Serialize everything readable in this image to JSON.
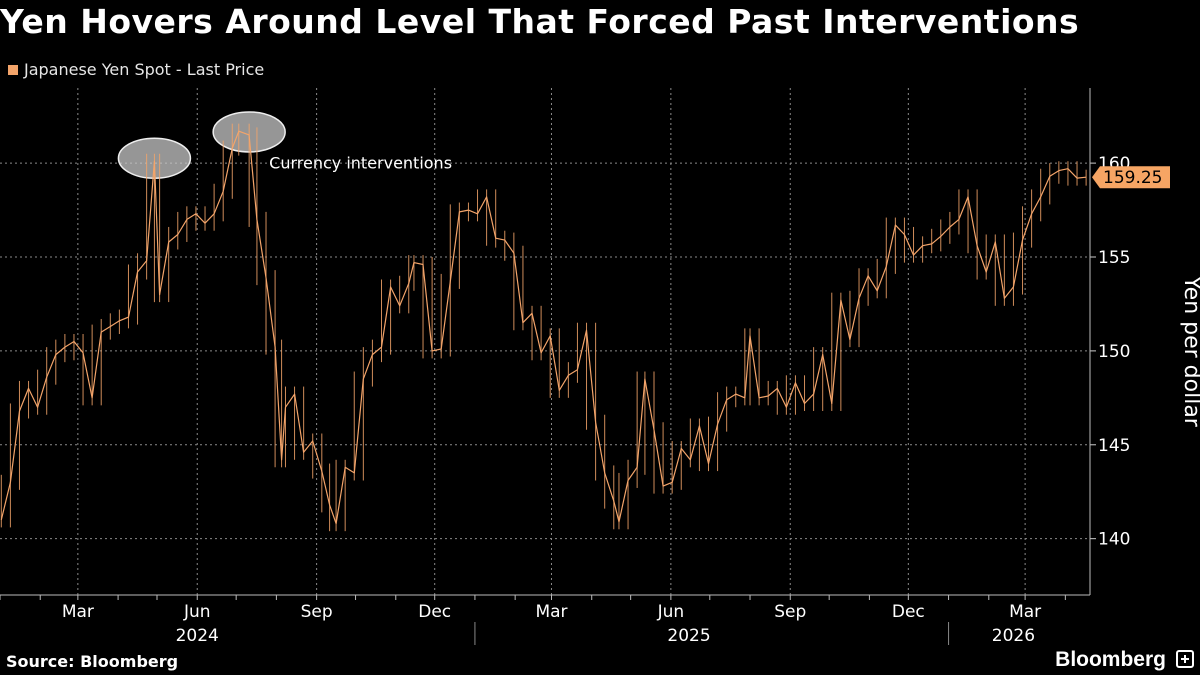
{
  "title": "Yen Hovers Around Level That Forced Past Interventions",
  "legend_label": "Japanese Yen Spot - Last Price",
  "source": "Source: Bloomberg",
  "brand": "Bloomberg",
  "colors": {
    "background": "#000000",
    "series": "#f3a46a",
    "grid": "#8a8a8a",
    "badge": "#f6a564",
    "badge_text": "#000000",
    "annotation_fill": "#c8c8c8"
  },
  "chart_data": {
    "type": "line",
    "title": "Yen Hovers Around Level That Forced Past Interventions",
    "ylabel": "Yen per dollar",
    "xlabel": "",
    "ylim": [
      137,
      164
    ],
    "yticks": [
      140,
      145,
      150,
      155,
      160
    ],
    "y_tick_labels": [
      "140",
      "145",
      "150",
      "155",
      "160"
    ],
    "xlim": [
      "2024-01-01",
      "2026-04-20"
    ],
    "month_ticks": [
      {
        "date": "2024-03-01",
        "label": "Mar"
      },
      {
        "date": "2024-06-01",
        "label": "Jun"
      },
      {
        "date": "2024-09-01",
        "label": "Sep"
      },
      {
        "date": "2024-12-01",
        "label": "Dec"
      },
      {
        "date": "2025-03-01",
        "label": "Mar"
      },
      {
        "date": "2025-06-01",
        "label": "Jun"
      },
      {
        "date": "2025-09-01",
        "label": "Sep"
      },
      {
        "date": "2025-12-01",
        "label": "Dec"
      },
      {
        "date": "2026-03-01",
        "label": "Mar"
      }
    ],
    "year_labels": [
      {
        "date": "2024-06-01",
        "label": "2024"
      },
      {
        "date": "2025-06-15",
        "label": "2025"
      },
      {
        "date": "2026-02-20",
        "label": "2026"
      }
    ],
    "year_dividers": [
      "2025-01-01",
      "2026-01-01"
    ],
    "last_value": 159.25,
    "last_value_label": "159.25",
    "grid": true,
    "legend_position": "top-left",
    "annotation": {
      "text": "Currency interventions",
      "marked_dates": [
        "2024-04-29",
        "2024-07-11"
      ]
    },
    "series": [
      {
        "name": "Japanese Yen Spot - Last Price",
        "x": [
          "2024-01-02",
          "2024-01-09",
          "2024-01-16",
          "2024-01-23",
          "2024-01-30",
          "2024-02-06",
          "2024-02-13",
          "2024-02-20",
          "2024-02-27",
          "2024-03-05",
          "2024-03-12",
          "2024-03-19",
          "2024-03-26",
          "2024-04-02",
          "2024-04-09",
          "2024-04-16",
          "2024-04-23",
          "2024-04-29",
          "2024-05-03",
          "2024-05-10",
          "2024-05-17",
          "2024-05-24",
          "2024-05-31",
          "2024-06-07",
          "2024-06-14",
          "2024-06-21",
          "2024-06-28",
          "2024-07-03",
          "2024-07-11",
          "2024-07-17",
          "2024-07-24",
          "2024-07-31",
          "2024-08-05",
          "2024-08-08",
          "2024-08-15",
          "2024-08-22",
          "2024-08-29",
          "2024-09-05",
          "2024-09-11",
          "2024-09-16",
          "2024-09-23",
          "2024-09-30",
          "2024-10-07",
          "2024-10-14",
          "2024-10-21",
          "2024-10-28",
          "2024-11-04",
          "2024-11-11",
          "2024-11-15",
          "2024-11-22",
          "2024-11-29",
          "2024-12-06",
          "2024-12-13",
          "2024-12-20",
          "2024-12-27",
          "2025-01-03",
          "2025-01-10",
          "2025-01-17",
          "2025-01-24",
          "2025-01-31",
          "2025-02-07",
          "2025-02-14",
          "2025-02-21",
          "2025-02-28",
          "2025-03-07",
          "2025-03-14",
          "2025-03-21",
          "2025-03-28",
          "2025-04-04",
          "2025-04-11",
          "2025-04-18",
          "2025-04-22",
          "2025-04-29",
          "2025-05-06",
          "2025-05-12",
          "2025-05-19",
          "2025-05-26",
          "2025-06-02",
          "2025-06-09",
          "2025-06-16",
          "2025-06-23",
          "2025-06-30",
          "2025-07-07",
          "2025-07-14",
          "2025-07-21",
          "2025-07-28",
          "2025-08-01",
          "2025-08-08",
          "2025-08-15",
          "2025-08-22",
          "2025-08-29",
          "2025-09-05",
          "2025-09-12",
          "2025-09-19",
          "2025-09-26",
          "2025-10-03",
          "2025-10-10",
          "2025-10-17",
          "2025-10-24",
          "2025-10-31",
          "2025-11-07",
          "2025-11-14",
          "2025-11-21",
          "2025-11-28",
          "2025-12-05",
          "2025-12-12",
          "2025-12-19",
          "2025-12-26",
          "2026-01-02",
          "2026-01-09",
          "2026-01-16",
          "2026-01-23",
          "2026-01-30",
          "2026-02-06",
          "2026-02-13",
          "2026-02-20",
          "2026-02-27",
          "2026-03-06",
          "2026-03-13",
          "2026-03-20",
          "2026-03-27",
          "2026-04-03",
          "2026-04-10",
          "2026-04-17"
        ],
        "values": [
          141.0,
          143.0,
          146.8,
          148.0,
          147.0,
          148.6,
          149.8,
          150.2,
          150.5,
          149.9,
          147.5,
          151.0,
          151.3,
          151.6,
          151.8,
          154.2,
          154.8,
          160.1,
          153.0,
          155.8,
          156.2,
          157.0,
          157.3,
          156.8,
          157.3,
          158.5,
          160.8,
          161.7,
          161.5,
          157.0,
          153.9,
          150.2,
          144.2,
          147.0,
          147.7,
          144.6,
          145.2,
          143.6,
          141.8,
          140.8,
          143.8,
          143.5,
          148.5,
          149.8,
          150.2,
          153.4,
          152.4,
          153.6,
          154.7,
          154.6,
          150.0,
          150.1,
          153.7,
          157.4,
          157.5,
          157.3,
          158.2,
          156.0,
          155.9,
          155.2,
          151.5,
          152.0,
          149.9,
          150.8,
          147.9,
          148.7,
          149.0,
          151.1,
          146.2,
          143.5,
          142.0,
          140.9,
          143.1,
          143.8,
          148.5,
          145.8,
          142.8,
          143.0,
          144.8,
          144.2,
          146.0,
          144.0,
          146.1,
          147.4,
          147.7,
          147.5,
          150.8,
          147.5,
          147.6,
          148.0,
          147.0,
          148.3,
          147.2,
          147.7,
          149.8,
          147.2,
          152.7,
          150.6,
          152.8,
          154.0,
          153.2,
          154.5,
          156.7,
          156.2,
          155.1,
          155.6,
          155.7,
          156.1,
          156.6,
          157.0,
          158.2,
          155.6,
          154.2,
          155.8,
          152.8,
          153.4,
          155.9,
          157.3,
          158.2,
          159.3,
          159.6,
          159.7,
          159.2,
          159.25
        ]
      }
    ]
  }
}
